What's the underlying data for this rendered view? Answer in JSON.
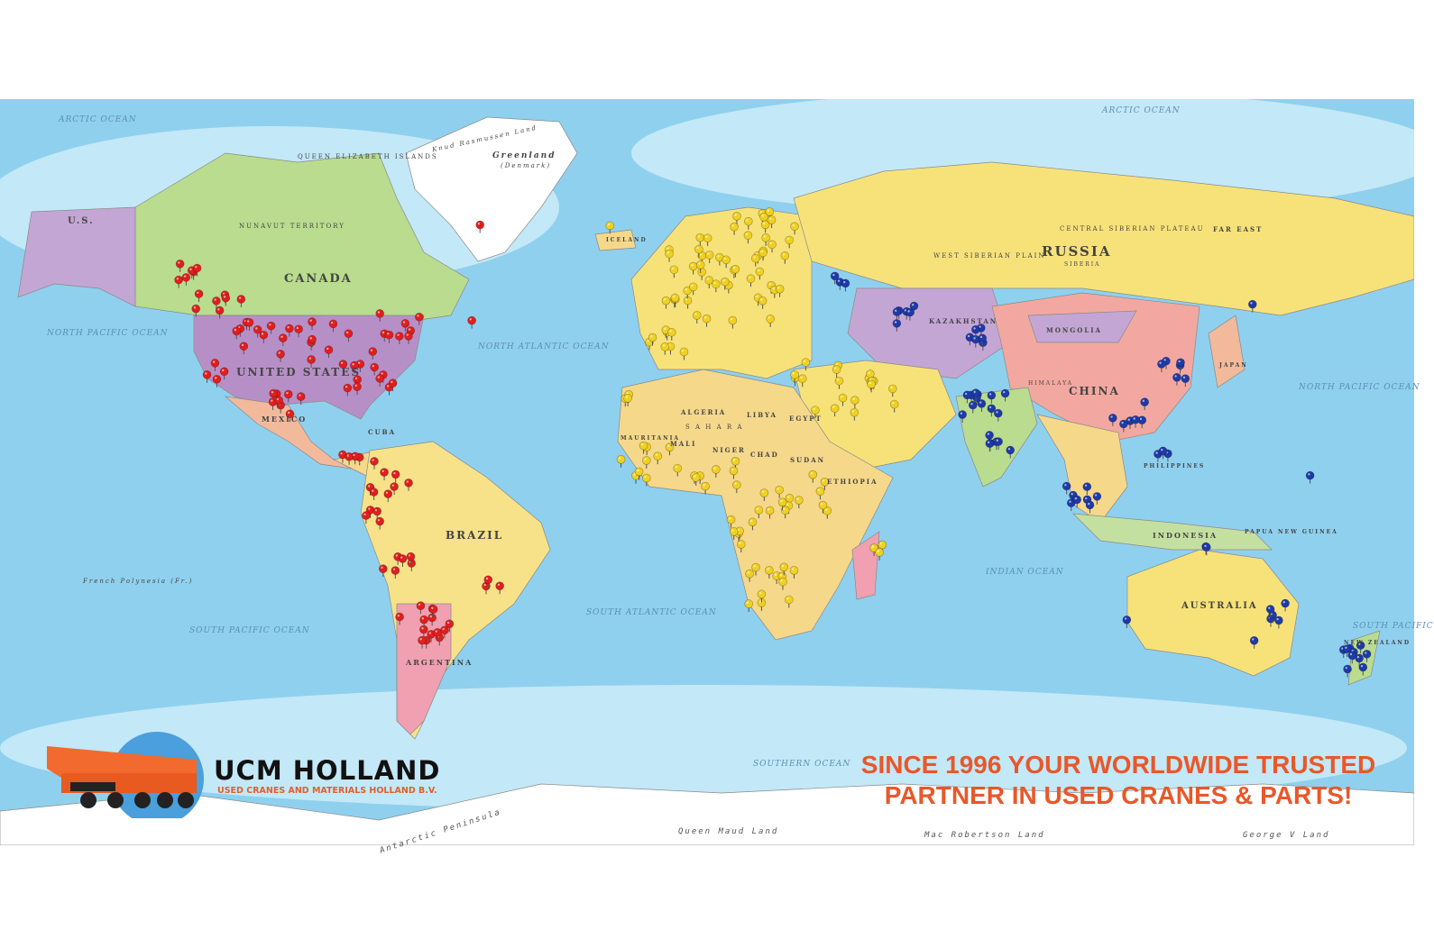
{
  "map": {
    "colors": {
      "ocean": "#8fd0ee",
      "shallow": "#c3e8f7",
      "ice": "#ffffff",
      "pin_americas": "#e01e1e",
      "pin_emea": "#f0d020",
      "pin_apac": "#1e3aa8"
    },
    "labels": {
      "arctic_w": "ARCTIC OCEAN",
      "arctic_e": "ARCTIC OCEAN",
      "north_pacific_w": "NORTH PACIFIC OCEAN",
      "north_pacific_e": "NORTH PACIFIC OCEAN",
      "north_atlantic": "NORTH ATLANTIC OCEAN",
      "south_atlantic": "SOUTH ATLANTIC OCEAN",
      "south_pacific_w": "SOUTH PACIFIC OCEAN",
      "south_pacific_e": "SOUTH PACIFIC",
      "indian": "INDIAN OCEAN",
      "southern": "SOUTHERN OCEAN",
      "us_alaska": "U.S.",
      "canada": "CANADA",
      "nunavut": "NUNAVUT TERRITORY",
      "qe_islands": "QUEEN ELIZABETH ISLANDS",
      "united_states": "UNITED STATES",
      "mexico": "MEXICO",
      "cuba": "CUBA",
      "brazil": "BRAZIL",
      "argentina": "ARGENTINA",
      "greenland": "Greenland",
      "greenland_sub": "(Denmark)",
      "knud": "Knud Rasmussen Land",
      "iceland": "ICELAND",
      "russia": "RUSSIA",
      "siberia": "SIBERIA",
      "west_siberian": "WEST SIBERIAN PLAIN",
      "central_siberian": "CENTRAL SIBERIAN PLATEAU",
      "far_east": "FAR EAST",
      "kazakhstan": "KAZAKHSTAN",
      "mongolia": "MONGOLIA",
      "china": "CHINA",
      "himalaya": "HIMALAYA",
      "japan": "JAPAN",
      "philippines": "PHILIPPINES",
      "indonesia": "INDONESIA",
      "papua": "PAPUA NEW GUINEA",
      "australia": "AUSTRALIA",
      "new_zealand": "NEW ZEALAND",
      "algeria": "ALGERIA",
      "libya": "LIBYA",
      "egypt": "EGYPT",
      "mali": "MALI",
      "niger": "NIGER",
      "chad": "CHAD",
      "sudan": "SUDAN",
      "ethiopia": "ETHIOPIA",
      "mauritania": "MAURITANIA",
      "sahara": "S A H A R A",
      "french_polynesia": "French Polynesia (Fr.)",
      "queen_maud": "Queen Maud Land",
      "mac_robertson": "Mac Robertson Land",
      "george_v": "George V Land",
      "antarctic_peninsula": "Antarctic Peninsula"
    }
  },
  "logo": {
    "name": "UCM HOLLAND",
    "subtitle": "USED CRANES AND MATERIALS HOLLAND B.V."
  },
  "slogan": {
    "line1": "SINCE 1996 YOUR WORLDWIDE TRUSTED",
    "line2": "PARTNER IN USED CRANES & PARTS!"
  }
}
